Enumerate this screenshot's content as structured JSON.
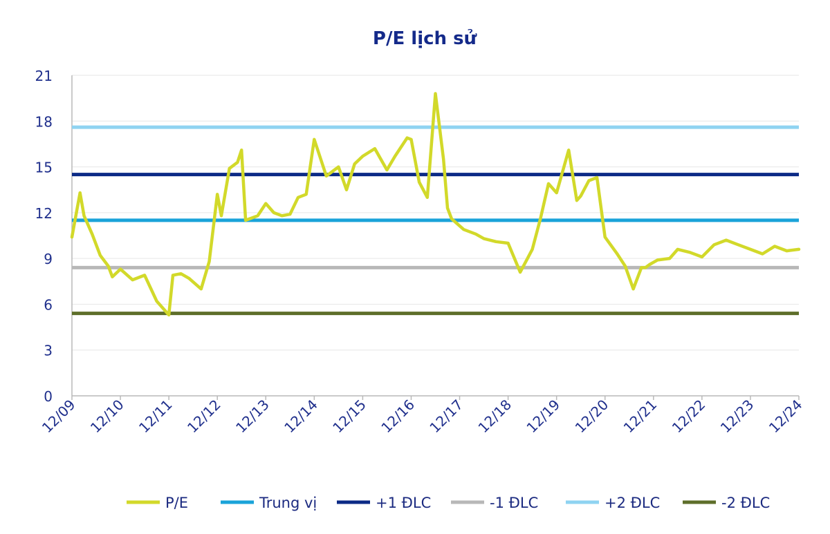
{
  "chart_data": {
    "type": "line",
    "title": "P/E lịch sử",
    "xlabel": "",
    "ylabel": "",
    "ylim": [
      0,
      21
    ],
    "yticks": [
      0,
      3,
      6,
      9,
      12,
      15,
      18,
      21
    ],
    "xlim": [
      "12/09",
      "12/24"
    ],
    "xticks": [
      "12/09",
      "12/10",
      "12/11",
      "12/12",
      "12/13",
      "12/14",
      "12/15",
      "12/16",
      "12/17",
      "12/18",
      "12/19",
      "12/20",
      "12/21",
      "12/22",
      "12/23",
      "12/24"
    ],
    "grid": "horizontal",
    "legend_position": "bottom",
    "series": [
      {
        "name": "P/E",
        "color": "#d2d92a",
        "x": [
          "12/09",
          "02/10",
          "03/10",
          "05/10",
          "07/10",
          "09/10",
          "10/10",
          "12/10",
          "03/11",
          "06/11",
          "09/11",
          "12/11",
          "01/12",
          "03/12",
          "05/12",
          "08/12",
          "10/12",
          "12/12",
          "01/13",
          "03/13",
          "05/13",
          "06/13",
          "07/13",
          "10/13",
          "12/13",
          "02/14",
          "04/14",
          "06/14",
          "08/14",
          "10/14",
          "12/14",
          "03/15",
          "06/15",
          "08/15",
          "10/15",
          "12/15",
          "03/16",
          "06/16",
          "08/16",
          "11/16",
          "12/16",
          "02/17",
          "04/17",
          "06/17",
          "08/17",
          "09/17",
          "10/17",
          "01/18",
          "04/18",
          "06/18",
          "09/18",
          "12/18",
          "03/19",
          "05/19",
          "06/19",
          "08/19",
          "10/19",
          "12/19",
          "03/20",
          "05/20",
          "06/20",
          "08/20",
          "10/20",
          "12/20",
          "03/21",
          "05/21",
          "07/21",
          "09/21",
          "10/21",
          "11/21",
          "01/22",
          "04/22",
          "06/22",
          "09/22",
          "12/22",
          "03/23",
          "06/23",
          "09/23",
          "12/23",
          "03/24",
          "06/24",
          "09/24",
          "12/24"
        ],
        "values": [
          10.4,
          13.3,
          11.8,
          10.6,
          9.2,
          8.5,
          7.8,
          8.3,
          7.6,
          7.9,
          6.2,
          5.3,
          7.9,
          8.0,
          7.7,
          7.0,
          8.8,
          13.2,
          11.8,
          14.9,
          15.3,
          16.1,
          11.5,
          11.8,
          12.6,
          12.0,
          11.8,
          11.9,
          13.0,
          13.2,
          16.8,
          14.4,
          15.0,
          13.5,
          15.2,
          15.7,
          16.2,
          14.8,
          15.7,
          16.9,
          16.8,
          14.0,
          13.0,
          19.8,
          15.5,
          12.3,
          11.6,
          10.9,
          10.6,
          10.3,
          10.1,
          10.0,
          8.1,
          9.1,
          9.6,
          11.6,
          13.9,
          13.3,
          16.1,
          12.8,
          13.1,
          14.1,
          14.3,
          10.4,
          9.3,
          8.5,
          7.0,
          8.4,
          8.4,
          8.6,
          8.9,
          9.0,
          9.6,
          9.4,
          9.1,
          9.9,
          10.2,
          9.9,
          9.6,
          9.3,
          9.8,
          9.5,
          9.6
        ]
      },
      {
        "name": "Trung vị",
        "color": "#1aa3d9",
        "constant": 11.5
      },
      {
        "name": "+1 ĐLC",
        "color": "#0c2a86",
        "constant": 14.5
      },
      {
        "name": "-1 ĐLC",
        "color": "#b8b8b8",
        "constant": 8.4
      },
      {
        "name": "+2 ĐLC",
        "color": "#8fd3f1",
        "constant": 17.6
      },
      {
        "name": "-2 ĐLC",
        "color": "#5e6e2a",
        "constant": 5.4
      }
    ]
  },
  "colors": {
    "title": "#142a8a",
    "axis_text": "#1f2f8c",
    "axis_line": "#b9b9b9",
    "grid": "#e6e6e6"
  }
}
